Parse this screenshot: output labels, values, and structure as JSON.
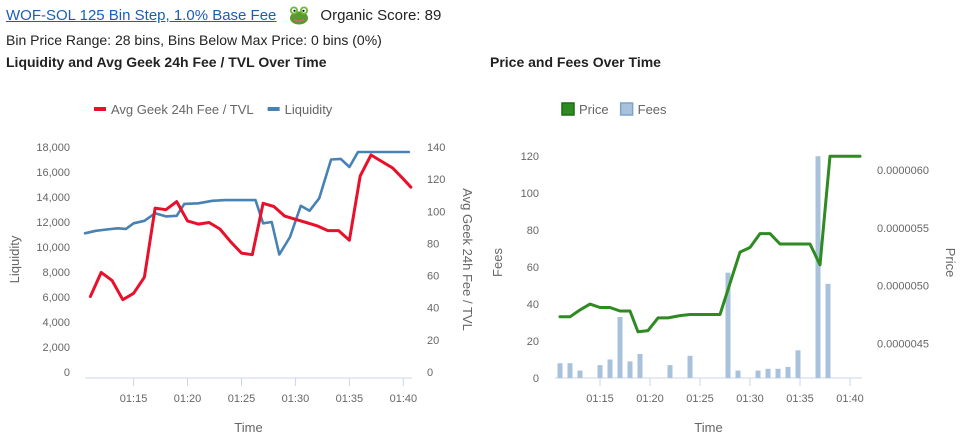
{
  "header": {
    "pool_link": "WOF-SOL 125 Bin Step, 1.0% Base Fee",
    "organic_score": "Organic Score: 89",
    "bin_info": "Bin Price Range: 28 bins, Bins Below Max Price: 0 bins (0%)"
  },
  "chart_data": [
    {
      "type": "line",
      "title": "Liquidity and Avg Geek 24h Fee / TVL Over Time",
      "xlabel": "Time",
      "ylabel": "Liquidity",
      "y2label": "Avg Geek 24h Fee / TVL",
      "x_ticks": [
        "01:15",
        "01:20",
        "01:25",
        "01:30",
        "01:35",
        "01:40"
      ],
      "y_ticks": [
        "0",
        "2,000",
        "4,000",
        "6,000",
        "8,000",
        "10,000",
        "12,000",
        "14,000",
        "16,000",
        "18,000"
      ],
      "y2_ticks": [
        "0",
        "20",
        "40",
        "60",
        "80",
        "100",
        "120",
        "140"
      ],
      "ylim": [
        0,
        18000
      ],
      "y2lim": [
        0,
        140
      ],
      "xlim_minutes": [
        10.5,
        40.8
      ],
      "grid": false,
      "legend_position": "top-left",
      "series": [
        {
          "name": "Avg Geek 24h Fee / TVL",
          "axis": "right",
          "color": "#e8102a",
          "points": [
            [
              11,
              47
            ],
            [
              12,
              62
            ],
            [
              13,
              57
            ],
            [
              14,
              45
            ],
            [
              15,
              49
            ],
            [
              16,
              59
            ],
            [
              17,
              102
            ],
            [
              18,
              101
            ],
            [
              19,
              106
            ],
            [
              20,
              94
            ],
            [
              21,
              92
            ],
            [
              22,
              93
            ],
            [
              23,
              89
            ],
            [
              24,
              81
            ],
            [
              25,
              74
            ],
            [
              26,
              73
            ],
            [
              27,
              105
            ],
            [
              28,
              103
            ],
            [
              29,
              97
            ],
            [
              30,
              95
            ],
            [
              31,
              93
            ],
            [
              32,
              91
            ],
            [
              33,
              88
            ],
            [
              34,
              88
            ],
            [
              35,
              82
            ],
            [
              36,
              122
            ],
            [
              37,
              135
            ],
            [
              38,
              131
            ],
            [
              39,
              127
            ],
            [
              40,
              120
            ],
            [
              40.7,
              115
            ]
          ]
        },
        {
          "name": "Liquidity",
          "axis": "left",
          "color": "#4682b4",
          "points": [
            [
              10.5,
              11100
            ],
            [
              11.5,
              11300
            ],
            [
              12.5,
              11400
            ],
            [
              13.5,
              11500
            ],
            [
              14.3,
              11450
            ],
            [
              15,
              11900
            ],
            [
              16,
              12100
            ],
            [
              17,
              12700
            ],
            [
              18,
              12450
            ],
            [
              19,
              12500
            ],
            [
              19.7,
              13450
            ],
            [
              21,
              13500
            ],
            [
              22.3,
              13700
            ],
            [
              23.5,
              13750
            ],
            [
              24.5,
              13750
            ],
            [
              25.5,
              13750
            ],
            [
              26.3,
              13750
            ],
            [
              27,
              11900
            ],
            [
              27.8,
              12000
            ],
            [
              28.5,
              9400
            ],
            [
              29.5,
              10800
            ],
            [
              30.5,
              13300
            ],
            [
              31.3,
              12900
            ],
            [
              32.2,
              13900
            ],
            [
              33.3,
              17000
            ],
            [
              34.2,
              17050
            ],
            [
              35,
              16400
            ],
            [
              35.8,
              17600
            ],
            [
              37.5,
              17600
            ],
            [
              39,
              17600
            ],
            [
              40.5,
              17600
            ]
          ]
        }
      ]
    },
    {
      "type": "line",
      "title": "Price and Fees Over Time",
      "xlabel": "Time",
      "ylabel": "Fees",
      "y2label": "Price",
      "x_ticks": [
        "01:15",
        "01:20",
        "01:25",
        "01:30",
        "01:35",
        "01:40"
      ],
      "y_ticks": [
        "0",
        "20",
        "40",
        "60",
        "80",
        "100",
        "120"
      ],
      "y2_ticks": [
        "0.0000045",
        "0.0000050",
        "0.0000055",
        "0.0000060"
      ],
      "ylim": [
        0,
        125
      ],
      "y2lim": [
        4.2e-06,
        6.2e-06
      ],
      "xlim_minutes": [
        10.5,
        41.2
      ],
      "grid": false,
      "legend_position": "top-left",
      "series": [
        {
          "name": "Price",
          "axis": "right",
          "color": "#2e8b22",
          "points": [
            [
              11,
              4.73e-06
            ],
            [
              12,
              4.73e-06
            ],
            [
              13,
              4.79e-06
            ],
            [
              14,
              4.84e-06
            ],
            [
              15,
              4.81e-06
            ],
            [
              16,
              4.81e-06
            ],
            [
              17,
              4.78e-06
            ],
            [
              18,
              4.78e-06
            ],
            [
              18.8,
              4.6e-06
            ],
            [
              19.8,
              4.61e-06
            ],
            [
              20.8,
              4.72e-06
            ],
            [
              21.8,
              4.72e-06
            ],
            [
              23,
              4.74e-06
            ],
            [
              24,
              4.75e-06
            ],
            [
              25,
              4.75e-06
            ],
            [
              26,
              4.75e-06
            ],
            [
              27,
              4.75e-06
            ],
            [
              28,
              5.02e-06
            ],
            [
              29,
              5.29e-06
            ],
            [
              30,
              5.33e-06
            ],
            [
              31,
              5.45e-06
            ],
            [
              32,
              5.45e-06
            ],
            [
              33,
              5.36e-06
            ],
            [
              34,
              5.36e-06
            ],
            [
              35,
              5.36e-06
            ],
            [
              36,
              5.36e-06
            ],
            [
              37,
              5.18e-06
            ],
            [
              38,
              6.12e-06
            ],
            [
              39,
              6.12e-06
            ],
            [
              40,
              6.12e-06
            ],
            [
              41,
              6.12e-06
            ]
          ]
        },
        {
          "name": "Fees",
          "axis": "left",
          "color": "#a8c2dc",
          "bar_type": "bar",
          "bars": [
            [
              11,
              8
            ],
            [
              12,
              8
            ],
            [
              13,
              4
            ],
            [
              15,
              7
            ],
            [
              16,
              10
            ],
            [
              17,
              33
            ],
            [
              18,
              9
            ],
            [
              19,
              13
            ],
            [
              22,
              7
            ],
            [
              24,
              12
            ],
            [
              27.8,
              57
            ],
            [
              28.8,
              4
            ],
            [
              30.8,
              4
            ],
            [
              31.8,
              5
            ],
            [
              32.8,
              5
            ],
            [
              33.8,
              6
            ],
            [
              34.8,
              15
            ],
            [
              36.8,
              120
            ],
            [
              37.8,
              51
            ]
          ]
        }
      ]
    }
  ]
}
